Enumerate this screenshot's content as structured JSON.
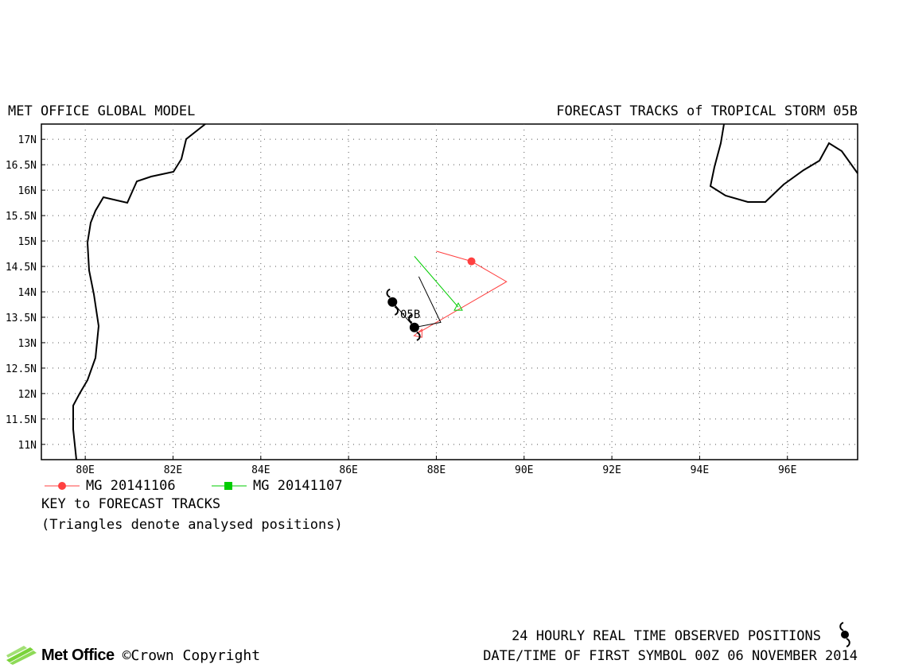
{
  "header": {
    "left_title": "MET OFFICE GLOBAL MODEL",
    "right_title": "FORECAST TRACKS of TROPICAL STORM 05B"
  },
  "axes": {
    "lat_labels": [
      "17N",
      "16.5N",
      "16N",
      "15.5N",
      "15N",
      "14.5N",
      "14N",
      "13.5N",
      "13N",
      "12.5N",
      "12N",
      "11.5N",
      "11N"
    ],
    "lon_labels": [
      "80E",
      "82E",
      "84E",
      "86E",
      "88E",
      "90E",
      "92E",
      "94E",
      "96E"
    ],
    "lon_range": [
      79.0,
      97.6
    ],
    "lat_range": [
      10.7,
      17.3
    ]
  },
  "legend": {
    "items": [
      {
        "label": "MG 20141106",
        "color": "#ff4040",
        "marker": "circle"
      },
      {
        "label": "MG 20141107",
        "color": "#00cc00",
        "marker": "square"
      }
    ],
    "key_title": "KEY to FORECAST TRACKS",
    "key_note": "(Triangles denote analysed positions)"
  },
  "storm_label": "05B",
  "tracks": {
    "mg_20141106": {
      "color": "#ff4040",
      "points": [
        [
          88.0,
          14.8
        ],
        [
          88.8,
          14.6
        ],
        [
          89.6,
          14.2
        ],
        [
          87.6,
          13.2
        ]
      ]
    },
    "mg_20141107": {
      "color": "#00cc00",
      "points": [
        [
          87.5,
          14.7
        ],
        [
          88.5,
          13.7
        ]
      ]
    },
    "observed": {
      "color": "#000000",
      "points": [
        [
          87.0,
          13.8
        ],
        [
          87.5,
          13.3
        ],
        [
          88.1,
          13.4
        ],
        [
          87.6,
          14.3
        ]
      ]
    }
  },
  "footer": {
    "observed_note": "24 HOURLY REAL TIME OBSERVED POSITIONS",
    "datetime_note": "DATE/TIME OF FIRST SYMBOL 00Z 06 NOVEMBER 2014",
    "brand": "Met Office",
    "copyright": "©Crown Copyright"
  }
}
